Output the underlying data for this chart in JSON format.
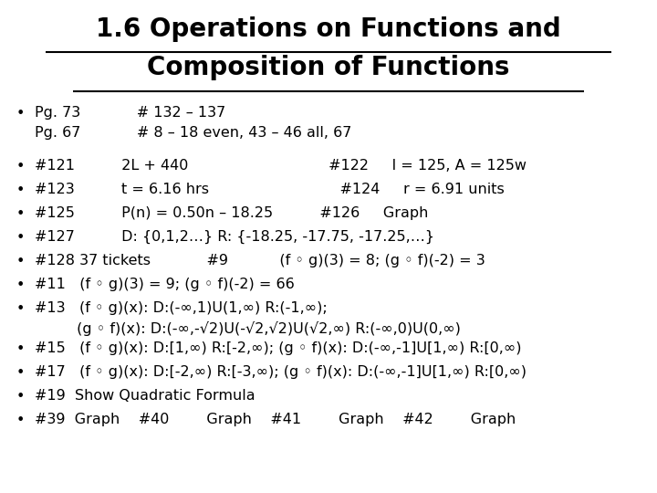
{
  "title_line1": "1.6 Operations on Functions and",
  "title_line2": "Composition of Functions",
  "bg_color": "#ffffff",
  "text_color": "#000000",
  "title_fontsize": 20,
  "body_fontsize": 11.5,
  "bullet_fontsize": 11.5,
  "items": [
    {
      "bullet": true,
      "indent2": true,
      "line1": "Pg. 73            # 132 – 137",
      "line2": "Pg. 67            # 8 – 18 even, 43 – 46 all, 67"
    },
    {
      "bullet": true,
      "indent2": false,
      "line1": "#121          2L + 440                              #122     l = 125, A = 125w",
      "line2": null
    },
    {
      "bullet": true,
      "indent2": false,
      "line1": "#123          t = 6.16 hrs                            #124     r = 6.91 units",
      "line2": null
    },
    {
      "bullet": true,
      "indent2": false,
      "line1": "#125          P(n) = 0.50n – 18.25          #126     Graph",
      "line2": null
    },
    {
      "bullet": true,
      "indent2": false,
      "line1": "#127          D: {0,1,2…} R: {-18.25, -17.75, -17.25,…}",
      "line2": null
    },
    {
      "bullet": true,
      "indent2": false,
      "line1": "#128 37 tickets            #9           (f ◦ g)(3) = 8; (g ◦ f)(-2) = 3",
      "line2": null
    },
    {
      "bullet": true,
      "indent2": false,
      "line1": "#11   (f ◦ g)(3) = 9; (g ◦ f)(-2) = 66",
      "line2": null
    },
    {
      "bullet": true,
      "indent2": true,
      "line1": "#13   (f ◦ g)(x): D:(-∞,1)U(1,∞) R:(-1,∞);",
      "line2": "         (g ◦ f)(x): D:(-∞,-√2)U(-√2,√2)U(√2,∞) R:(-∞,0)U(0,∞)"
    },
    {
      "bullet": true,
      "indent2": false,
      "line1": "#15   (f ◦ g)(x): D:[1,∞) R:[-2,∞); (g ◦ f)(x): D:(-∞,-1]U[1,∞) R:[0,∞)",
      "line2": null
    },
    {
      "bullet": true,
      "indent2": false,
      "line1": "#17   (f ◦ g)(x): D:[-2,∞) R:[-3,∞); (g ◦ f)(x): D:(-∞,-1]U[1,∞) R:[0,∞)",
      "line2": null
    },
    {
      "bullet": true,
      "indent2": false,
      "line1": "#19  Show Quadratic Formula",
      "line2": null
    },
    {
      "bullet": true,
      "indent2": false,
      "line1": "#39  Graph    #40        Graph    #41        Graph    #42        Graph",
      "line2": null
    }
  ]
}
